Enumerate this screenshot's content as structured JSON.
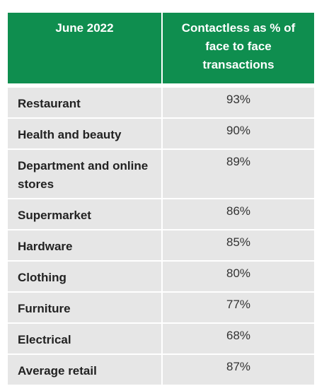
{
  "table": {
    "headers": [
      "June 2022",
      "Contactless as % of face to face transactions"
    ],
    "rows": [
      {
        "label": "Restaurant",
        "value": "93%"
      },
      {
        "label": "Health and beauty",
        "value": "90%"
      },
      {
        "label": "Department and online stores",
        "value": "89%"
      },
      {
        "label": "Supermarket",
        "value": "86%"
      },
      {
        "label": "Hardware",
        "value": "85%"
      },
      {
        "label": "Clothing",
        "value": "80%"
      },
      {
        "label": "Furniture",
        "value": "77%"
      },
      {
        "label": "Electrical",
        "value": "68%"
      },
      {
        "label": "Average retail",
        "value": "87%"
      }
    ]
  },
  "colors": {
    "header_bg": "#0f8e4f",
    "row_bg": "#e6e6e6",
    "header_text": "#ffffff"
  }
}
